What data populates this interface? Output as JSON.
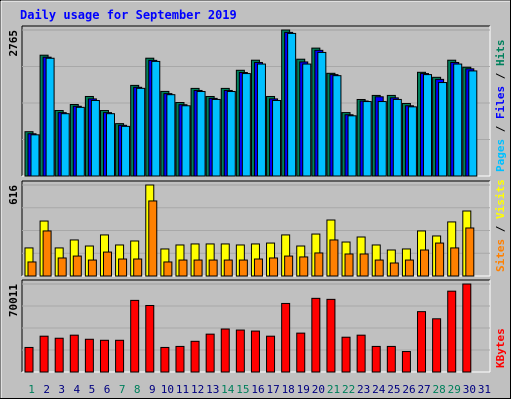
{
  "chart_data": [
    {
      "type": "bar",
      "title": "Daily usage for September 2019",
      "ylim": [
        0,
        2765
      ],
      "yticks": [
        2765
      ],
      "legend_separator": " / ",
      "series": [
        {
          "name": "Pages",
          "color": "#00c0ff",
          "values": [
            780,
            2230,
            1180,
            1300,
            1430,
            1180,
            940,
            1660,
            2170,
            1540,
            1330,
            1600,
            1450,
            1600,
            1940,
            2120,
            1430,
            2700,
            2120,
            2340,
            1900,
            1140,
            1410,
            1410,
            1450,
            1310,
            1920,
            1770,
            2120,
            1990,
            null
          ]
        },
        {
          "name": "Files",
          "color": "#0000ff",
          "values": [
            800,
            2250,
            1200,
            1320,
            1460,
            1200,
            960,
            1680,
            2190,
            1560,
            1350,
            1620,
            1470,
            1620,
            1960,
            2150,
            1460,
            2720,
            2160,
            2380,
            1920,
            1160,
            1420,
            1500,
            1480,
            1330,
            1940,
            1830,
            2150,
            2030,
            null
          ]
        },
        {
          "name": "Hits",
          "color": "#00805c",
          "values": [
            839,
            2288,
            1240,
            1354,
            1506,
            1240,
            992,
            1716,
            2231,
            1602,
            1392,
            1659,
            1506,
            1659,
            2002,
            2193,
            1506,
            2765,
            2212,
            2422,
            1945,
            1201,
            1449,
            1526,
            1526,
            1373,
            1964,
            1869,
            2193,
            2060,
            null
          ]
        }
      ]
    },
    {
      "type": "bar",
      "ylim": [
        0,
        616
      ],
      "yticks": [
        616
      ],
      "legend_separator": " / ",
      "series": [
        {
          "name": "Sites",
          "color": "#ff8000",
          "values": [
            95,
            305,
            122,
            135,
            108,
            162,
            115,
            115,
            508,
            95,
            108,
            108,
            108,
            108,
            108,
            115,
            122,
            135,
            129,
            156,
            244,
            149,
            149,
            108,
            88,
            108,
            176,
            223,
            190,
            325,
            null
          ]
        },
        {
          "name": "Visits",
          "color": "#ffff00",
          "values": [
            190,
            372,
            190,
            244,
            203,
            278,
            210,
            237,
            616,
            183,
            210,
            217,
            217,
            217,
            210,
            217,
            223,
            278,
            203,
            284,
            379,
            230,
            264,
            210,
            176,
            183,
            305,
            271,
            366,
            440,
            null
          ]
        }
      ]
    },
    {
      "type": "bar",
      "ylim": [
        0,
        70011
      ],
      "yticks": [
        70011
      ],
      "categories": [
        "1",
        "2",
        "3",
        "4",
        "5",
        "6",
        "7",
        "8",
        "9",
        "10",
        "11",
        "12",
        "13",
        "14",
        "15",
        "16",
        "17",
        "18",
        "19",
        "20",
        "21",
        "22",
        "23",
        "24",
        "25",
        "26",
        "27",
        "28",
        "29",
        "30",
        "31"
      ],
      "weekend_days": [
        "1",
        "7",
        "8",
        "14",
        "15",
        "21",
        "22",
        "28",
        "29"
      ],
      "weekend_color": "#00805c",
      "weekday_color": "#000080",
      "series": [
        {
          "name": "KBytes",
          "color": "#ff0000",
          "values": [
            19536,
            28490,
            26862,
            29304,
            26048,
            25234,
            25234,
            56980,
            52910,
            19536,
            20350,
            24420,
            30118,
            34188,
            33374,
            32560,
            28490,
            54538,
            30932,
            58608,
            57794,
            27676,
            29304,
            20350,
            20350,
            16280,
            48026,
            42328,
            64306,
            70011,
            null
          ]
        }
      ]
    }
  ]
}
